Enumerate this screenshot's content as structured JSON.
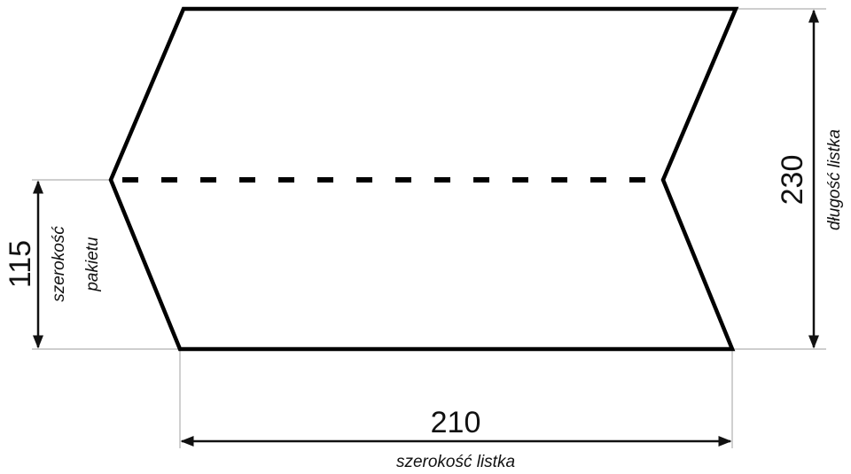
{
  "dimensions": {
    "length": {
      "value": "230",
      "label": "długość listka"
    },
    "package_width": {
      "value": "115",
      "label_line1": "szerokość",
      "label_line2": "pakietu"
    },
    "width": {
      "value": "210",
      "label": "szerokość listka"
    }
  },
  "colors": {
    "outline": "#000000",
    "dimension_line": "#111111",
    "extension_line": "#b0b0b0"
  }
}
